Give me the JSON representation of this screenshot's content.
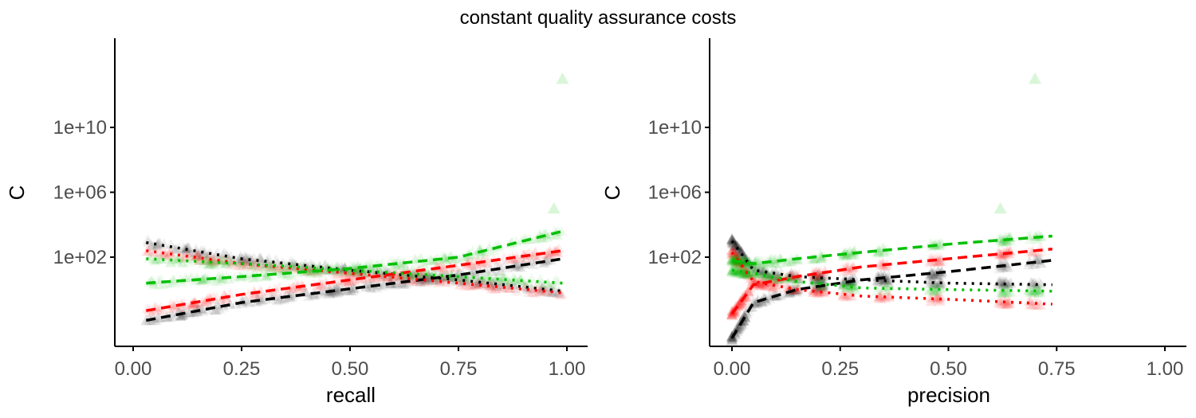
{
  "title": "constant quality assurance costs",
  "colors": {
    "black": "#000000",
    "red": "#ff0000",
    "green": "#00c000",
    "axis": "#000000",
    "tick_text": "#4d4d4d"
  },
  "chart_data": [
    {
      "type": "scatter",
      "xlabel": "recall",
      "ylabel": "C",
      "xlim": [
        0,
        1
      ],
      "ylim_log10": [
        -3.5,
        15.5
      ],
      "y_scale": "log10",
      "x_ticks": [
        0,
        0.25,
        0.5,
        0.75,
        1
      ],
      "x_tick_labels": [
        "0.00",
        "0.25",
        "0.50",
        "0.75",
        "1.00"
      ],
      "y_ticks_log10": [
        2,
        6,
        10
      ],
      "y_tick_labels": [
        "1e+02",
        "1e+06",
        "1e+10"
      ],
      "grid": false,
      "point_shape": "triangle",
      "series": [
        {
          "color": "black",
          "linetype": "dashed",
          "x": [
            0.03,
            0.25,
            0.5,
            0.75,
            0.99
          ],
          "y_log10": [
            -1.9,
            -0.8,
            0.05,
            0.9,
            1.9
          ]
        },
        {
          "color": "black",
          "linetype": "dotted",
          "x": [
            0.03,
            0.25,
            0.5,
            0.75,
            0.99
          ],
          "y_log10": [
            2.9,
            1.9,
            1.2,
            0.6,
            -0.1
          ]
        },
        {
          "color": "red",
          "linetype": "dashed",
          "x": [
            0.03,
            0.25,
            0.5,
            0.75,
            0.99
          ],
          "y_log10": [
            -1.3,
            -0.3,
            0.6,
            1.5,
            2.4
          ]
        },
        {
          "color": "red",
          "linetype": "dotted",
          "x": [
            0.03,
            0.25,
            0.5,
            0.75,
            0.99
          ],
          "y_log10": [
            2.4,
            1.6,
            1.0,
            0.4,
            -0.2
          ]
        },
        {
          "color": "green",
          "linetype": "dashed",
          "x": [
            0.03,
            0.25,
            0.5,
            0.75,
            0.99
          ],
          "y_log10": [
            0.4,
            0.8,
            1.3,
            2.0,
            3.6
          ]
        },
        {
          "color": "green",
          "linetype": "dotted",
          "x": [
            0.03,
            0.25,
            0.5,
            0.75,
            0.99
          ],
          "y_log10": [
            1.9,
            1.6,
            1.2,
            0.8,
            0.4
          ]
        }
      ]
    },
    {
      "type": "scatter",
      "xlabel": "precision",
      "ylabel": "C",
      "xlim": [
        0,
        1
      ],
      "ylim_log10": [
        -3.5,
        15.5
      ],
      "y_scale": "log10",
      "x_ticks": [
        0,
        0.25,
        0.5,
        0.75,
        1
      ],
      "x_tick_labels": [
        "0.00",
        "0.25",
        "0.50",
        "0.75",
        "1.00"
      ],
      "y_ticks_log10": [
        2,
        6,
        10
      ],
      "y_tick_labels": [
        "1e+02",
        "1e+06",
        "1e+10"
      ],
      "grid": false,
      "point_shape": "triangle",
      "series": [
        {
          "color": "black",
          "linetype": "dashed",
          "x": [
            0.0,
            0.05,
            0.15,
            0.3,
            0.5,
            0.74
          ],
          "y_log10": [
            -3.0,
            -0.8,
            0.0,
            0.6,
            1.1,
            1.8
          ]
        },
        {
          "color": "black",
          "linetype": "dotted",
          "x": [
            0.0,
            0.05,
            0.15,
            0.3,
            0.5,
            0.74
          ],
          "y_log10": [
            3.0,
            1.2,
            0.8,
            0.6,
            0.4,
            0.3
          ]
        },
        {
          "color": "red",
          "linetype": "dashed",
          "x": [
            0.0,
            0.05,
            0.15,
            0.3,
            0.5,
            0.74
          ],
          "y_log10": [
            -1.5,
            0.3,
            0.8,
            1.4,
            1.9,
            2.5
          ]
        },
        {
          "color": "red",
          "linetype": "dotted",
          "x": [
            0.0,
            0.05,
            0.15,
            0.3,
            0.5,
            0.74
          ],
          "y_log10": [
            2.3,
            0.5,
            0.0,
            -0.4,
            -0.6,
            -0.9
          ]
        },
        {
          "color": "green",
          "linetype": "dashed",
          "x": [
            0.0,
            0.05,
            0.15,
            0.3,
            0.5,
            0.74
          ],
          "y_log10": [
            1.8,
            1.6,
            1.9,
            2.3,
            2.8,
            3.3
          ]
        },
        {
          "color": "green",
          "linetype": "dotted",
          "x": [
            0.0,
            0.05,
            0.15,
            0.3,
            0.5,
            0.74
          ],
          "y_log10": [
            1.2,
            1.0,
            0.5,
            0.1,
            0.0,
            -0.1
          ]
        }
      ],
      "outlier_points": [
        {
          "color": "green",
          "x": 0.7,
          "y_log10": 13.0
        },
        {
          "color": "green",
          "x": 0.62,
          "y_log10": 5.0
        }
      ]
    }
  ],
  "panel1_outliers": [
    {
      "color": "green",
      "x": 0.99,
      "y_log10": 13.0
    },
    {
      "color": "green",
      "x": 0.97,
      "y_log10": 5.0
    }
  ]
}
